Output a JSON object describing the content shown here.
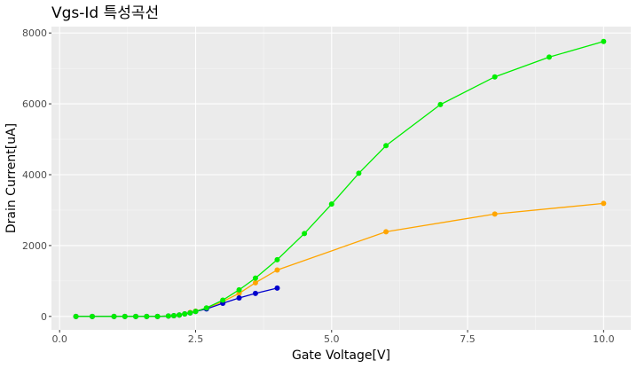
{
  "chart_data": {
    "type": "line",
    "title": "Vgs-Id 특성곡선",
    "xlabel": "Gate Voltage[V]",
    "ylabel": "Drain Current[uA]",
    "xlim": [
      -0.15,
      10.5
    ],
    "ylim": [
      -380,
      8180
    ],
    "x_ticks": [
      0,
      2.5,
      5,
      7.5,
      10
    ],
    "x_tick_labels": [
      "0.0",
      "2.5",
      "5.0",
      "7.5",
      "10.0"
    ],
    "y_ticks": [
      0,
      2000,
      4000,
      6000,
      8000
    ],
    "y_tick_labels": [
      "0",
      "2000",
      "4000",
      "6000",
      "8000"
    ],
    "grid": true,
    "background": "#ebebeb",
    "series": [
      {
        "color": "#ffa500",
        "x": [
          0.3,
          0.6,
          1.0,
          1.2,
          1.4,
          1.6,
          1.8,
          2.0,
          2.1,
          2.2,
          2.3,
          2.4,
          2.5,
          2.7,
          3.0,
          3.3,
          3.6,
          4.0,
          6.0,
          8.0,
          10.0
        ],
        "y": [
          0,
          0,
          0,
          0,
          0,
          0,
          0,
          10,
          20,
          40,
          70,
          110,
          150,
          230,
          420,
          650,
          950,
          1310,
          2390,
          2890,
          3190
        ]
      },
      {
        "color": "#0000cd",
        "x": [
          0.3,
          0.6,
          1.0,
          1.2,
          1.4,
          1.6,
          1.8,
          2.0,
          2.1,
          2.2,
          2.3,
          2.4,
          2.5,
          2.7,
          3.0,
          3.3,
          3.6,
          4.0
        ],
        "y": [
          0,
          0,
          0,
          0,
          0,
          0,
          0,
          10,
          20,
          40,
          70,
          100,
          140,
          210,
          370,
          520,
          650,
          800
        ]
      },
      {
        "color": "#00ee00",
        "x": [
          0.3,
          0.6,
          1.0,
          1.2,
          1.4,
          1.6,
          1.8,
          2.0,
          2.1,
          2.2,
          2.3,
          2.4,
          2.5,
          2.7,
          3.0,
          3.3,
          3.6,
          4.0,
          4.5,
          5.0,
          5.5,
          6.0,
          7.0,
          8.0,
          9.0,
          10.0
        ],
        "y": [
          0,
          0,
          0,
          0,
          0,
          0,
          0,
          10,
          20,
          40,
          70,
          100,
          140,
          240,
          460,
          750,
          1080,
          1600,
          2340,
          3170,
          4040,
          4820,
          5980,
          6760,
          7320,
          7760
        ]
      }
    ]
  }
}
